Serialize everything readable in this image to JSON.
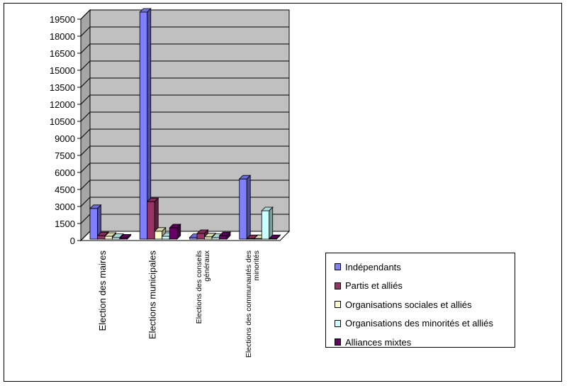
{
  "chart_data": {
    "type": "bar",
    "categories": [
      "Election des maires",
      "Elections municipales",
      "Elections des conseils généraux",
      "Elections des communautés des minorités"
    ],
    "series": [
      {
        "name": "Indépendants",
        "color": "#8080ff",
        "values": [
          2700,
          20000,
          150,
          5300
        ]
      },
      {
        "name": "Partis et alliés",
        "color": "#993366",
        "values": [
          300,
          3300,
          500,
          50
        ]
      },
      {
        "name": "Organisations sociales et alliés",
        "color": "#ffffcc",
        "values": [
          250,
          700,
          200,
          50
        ]
      },
      {
        "name": "Organisations des minorités et alliés",
        "color": "#ccffff",
        "values": [
          150,
          250,
          150,
          2500
        ]
      },
      {
        "name": "Alliances mixtes",
        "color": "#660066",
        "values": [
          100,
          1000,
          300,
          50
        ]
      }
    ],
    "y_ticks": [
      "0",
      "1500",
      "3000",
      "4500",
      "6000",
      "7500",
      "9000",
      "10500",
      "12000",
      "13500",
      "15000",
      "16500",
      "18000",
      "19500"
    ],
    "ylim": [
      0,
      19500
    ],
    "grid": true,
    "legend_position": "bottom-right",
    "wall_color": "#c0c0c0"
  }
}
